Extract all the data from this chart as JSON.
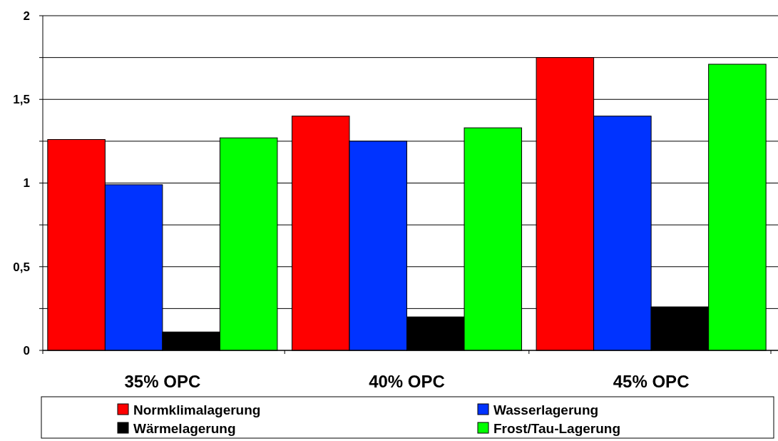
{
  "chart_data": {
    "type": "bar",
    "categories": [
      "35% OPC",
      "40% OPC",
      "45% OPC"
    ],
    "series": [
      {
        "name": "Normklimalagerung",
        "color": "#ff0000",
        "values": [
          1.26,
          1.4,
          1.75
        ]
      },
      {
        "name": "Wasserlagerung",
        "color": "#0033ff",
        "values": [
          0.99,
          1.25,
          1.4
        ]
      },
      {
        "name": "Wärmelagerung",
        "color": "#000000",
        "values": [
          0.11,
          0.2,
          0.26
        ]
      },
      {
        "name": "Frost/Tau-Lagerung",
        "color": "#00ff00",
        "values": [
          1.27,
          1.33,
          1.71
        ]
      }
    ],
    "ylim": [
      0,
      2
    ],
    "yticks": [
      0,
      {
        "value": 0.25,
        "label": null
      },
      {
        "value": 0.5,
        "label": "0,5"
      },
      {
        "value": 0.75,
        "label": null
      },
      1,
      {
        "value": 1.25,
        "label": null
      },
      {
        "value": 1.5,
        "label": "1,5"
      },
      {
        "value": 1.75,
        "label": null
      },
      2
    ],
    "grid": "y",
    "legend": "bottom"
  }
}
